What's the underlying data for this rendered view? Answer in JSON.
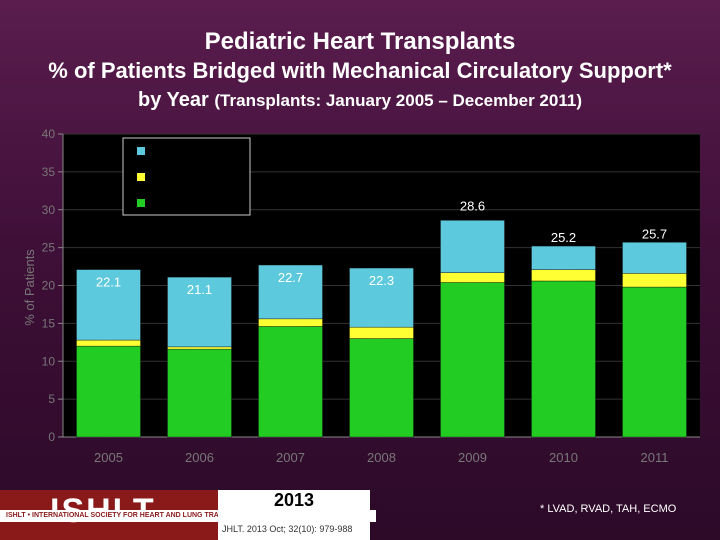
{
  "title": "Pediatric Heart Transplants",
  "subtitle_line1": "% of Patients Bridged with Mechanical Circulatory Support*",
  "subtitle_line2_main": "by Year",
  "subtitle_line2_paren": "(Transplants: January 2005 – December 2011)",
  "footnote": "* LVAD, RVAD, TAH, ECMO",
  "logo": {
    "text": "ISHLT",
    "subtext": "ISHLT • INTERNATIONAL SOCIETY FOR HEART AND LUNG TRANSPLANTATION"
  },
  "citation": {
    "year": "2013",
    "reference": "JHLT. 2013 Oct; 32(10): 979-988"
  },
  "colors": {
    "segment_bottom": "#22cc22",
    "segment_middle": "#ffff33",
    "segment_top": "#5cc9dc",
    "axis_text": "#777777"
  },
  "chart_data": {
    "type": "bar",
    "stacked": true,
    "ylabel": "% of Patients",
    "ylim": [
      0,
      40
    ],
    "yticks": [
      0,
      5,
      10,
      15,
      20,
      25,
      30,
      35,
      40
    ],
    "categories": [
      "2005",
      "2006",
      "2007",
      "2008",
      "2009",
      "2010",
      "2011"
    ],
    "totals": [
      22.1,
      21.1,
      22.7,
      22.3,
      28.6,
      25.2,
      25.7
    ],
    "total_labels": [
      "22.1",
      "21.1",
      "22.7",
      "22.3",
      "28.6",
      "25.2",
      "25.7"
    ],
    "series": [
      {
        "name": "bottom (green)",
        "values": [
          12.0,
          11.6,
          14.6,
          13.0,
          20.4,
          20.6,
          19.8
        ]
      },
      {
        "name": "middle (yellow)",
        "values": [
          0.8,
          0.3,
          1.0,
          1.5,
          1.3,
          1.5,
          1.8
        ]
      },
      {
        "name": "top (cyan)",
        "values": [
          9.3,
          9.2,
          7.1,
          7.8,
          6.9,
          3.1,
          4.1
        ]
      }
    ],
    "legend_entries": [
      "",
      "",
      ""
    ],
    "legend_position": "top-left"
  }
}
